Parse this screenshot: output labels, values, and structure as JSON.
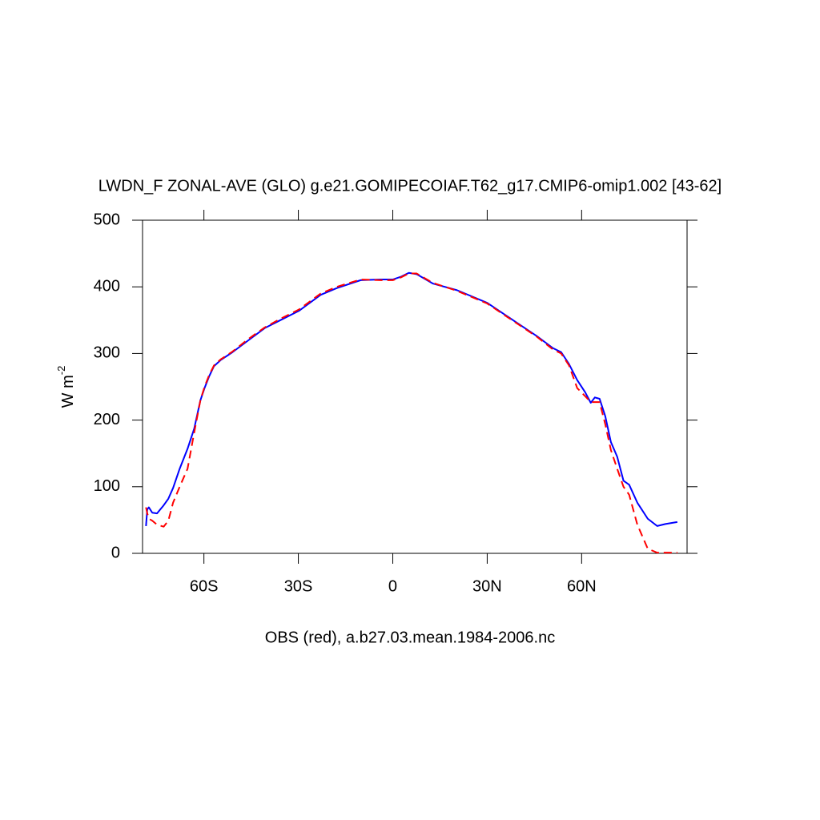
{
  "chart_data": {
    "type": "line",
    "title": "LWDN_F ZONAL-AVE (GLO) g.e21.GOMIPECOIAF.T62_g17.CMIP6-omip1.002 [43-62]",
    "subtitle": "OBS (red), a.b27.03.mean.1984-2006.nc",
    "ylabel": "W m",
    "ylabel_sup": "-2",
    "xlim": [
      -79.5,
      93.5
    ],
    "ylim": [
      0,
      500
    ],
    "xticks": [
      {
        "value": -60,
        "label": "60S"
      },
      {
        "value": -30,
        "label": "30S"
      },
      0,
      {
        "value": 30,
        "label": "30N"
      },
      {
        "value": 60,
        "label": "60N"
      }
    ],
    "yticks": [
      0,
      100,
      200,
      300,
      400,
      500
    ],
    "x": [
      -78.4,
      -78,
      -77.5,
      -76.4,
      -74.9,
      -72.8,
      -71.3,
      -69.8,
      -67.7,
      -65.2,
      -63.1,
      -61.1,
      -59.8,
      -58.3,
      -56.8,
      -54.7,
      -50.9,
      -45.8,
      -40.7,
      -35.7,
      -29.8,
      -22.9,
      -17.8,
      -10.2,
      -3.8,
      0,
      2.5,
      5.1,
      7.6,
      12.7,
      20.4,
      30,
      38.2,
      45.8,
      50.9,
      53.5,
      56,
      58.6,
      61.1,
      62.9,
      64.2,
      65.7,
      67.5,
      69.3,
      71.3,
      73.3,
      75.1,
      77.7,
      81,
      84,
      86.6,
      90.4
    ],
    "series": [
      {
        "color": "#0000ff",
        "dashed": false,
        "values": [
          41,
          66,
          69,
          61,
          60,
          72,
          82,
          98,
          127,
          157,
          187,
          230,
          248,
          266,
          281,
          290,
          302,
          320,
          338,
          350,
          364,
          388,
          398,
          410,
          411,
          411,
          415,
          421,
          419,
          405,
          395,
          376,
          350,
          326,
          308,
          302,
          284,
          260,
          242,
          226,
          234,
          232,
          206,
          167,
          145,
          109,
          103,
          76,
          52,
          41,
          44,
          47
        ]
      },
      {
        "color": "#ff0000",
        "dashed": true,
        "values": [
          69,
          60,
          52,
          49,
          43,
          40,
          49,
          76,
          100,
          127,
          181,
          230,
          250,
          268,
          282,
          291,
          303,
          322,
          339,
          352,
          366,
          390,
          400,
          411,
          410,
          410,
          414,
          420,
          420,
          406,
          394,
          375,
          349,
          325,
          306,
          300,
          282,
          248,
          236,
          227,
          227,
          227,
          194,
          155,
          127,
          100,
          88,
          43,
          7,
          1,
          1,
          1
        ]
      }
    ]
  }
}
